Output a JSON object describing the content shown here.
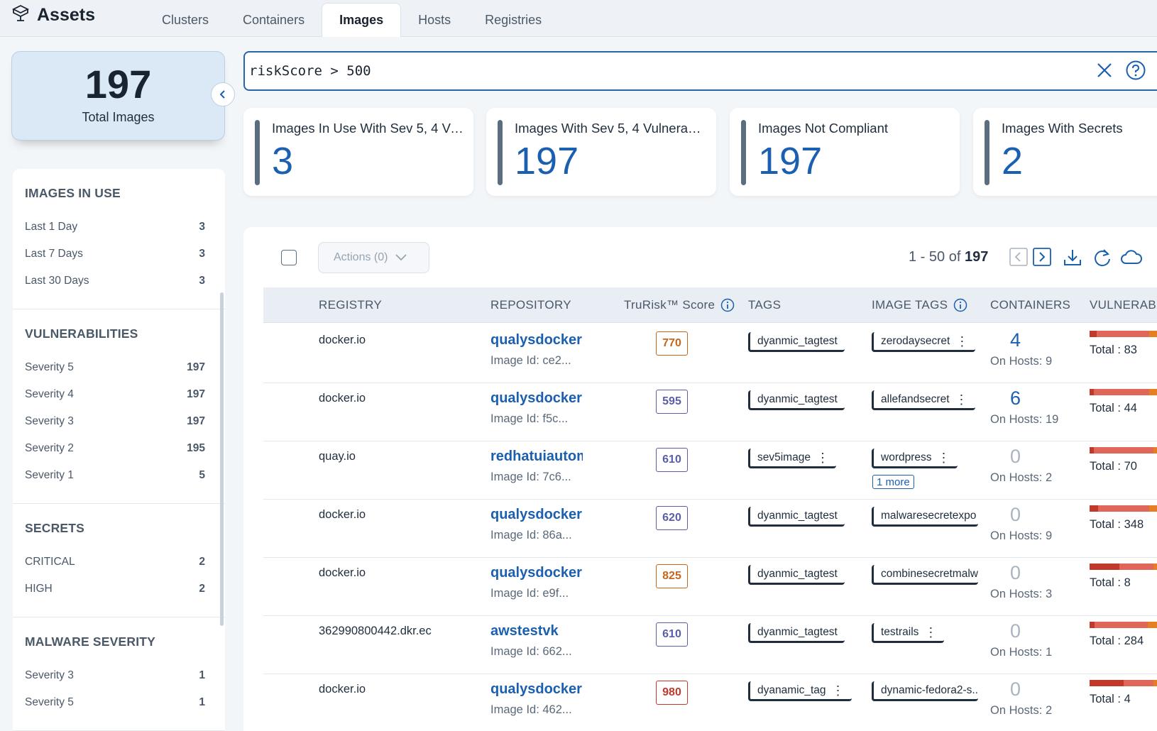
{
  "app": {
    "title": "Assets"
  },
  "tabs": [
    {
      "label": "Clusters",
      "active": false
    },
    {
      "label": "Containers",
      "active": false
    },
    {
      "label": "Images",
      "active": true
    },
    {
      "label": "Hosts",
      "active": false
    },
    {
      "label": "Registries",
      "active": false
    }
  ],
  "summary": {
    "total": "197",
    "label": "Total Images"
  },
  "filters": [
    {
      "title": "IMAGES IN USE",
      "items": [
        {
          "label": "Last 1 Day",
          "count": "3"
        },
        {
          "label": "Last 7 Days",
          "count": "3"
        },
        {
          "label": "Last 30 Days",
          "count": "3"
        }
      ]
    },
    {
      "title": "VULNERABILITIES",
      "items": [
        {
          "label": "Severity 5",
          "count": "197"
        },
        {
          "label": "Severity 4",
          "count": "197"
        },
        {
          "label": "Severity 3",
          "count": "197"
        },
        {
          "label": "Severity 2",
          "count": "195"
        },
        {
          "label": "Severity 1",
          "count": "5"
        }
      ]
    },
    {
      "title": "SECRETS",
      "items": [
        {
          "label": "CRITICAL",
          "count": "2"
        },
        {
          "label": "HIGH",
          "count": "2"
        }
      ]
    },
    {
      "title": "MALWARE SEVERITY",
      "items": [
        {
          "label": "Severity 3",
          "count": "1"
        },
        {
          "label": "Severity 5",
          "count": "1"
        }
      ]
    }
  ],
  "search": {
    "value": "riskScore > 500"
  },
  "kpis": [
    {
      "label": "Images In Use With Sev 5, 4 Vulnerabilities",
      "value": "3"
    },
    {
      "label": "Images With Sev 5, 4 Vulnerabilities",
      "value": "197"
    },
    {
      "label": "Images Not Compliant",
      "value": "197"
    },
    {
      "label": "Images With Secrets",
      "value": "2"
    }
  ],
  "toolbar": {
    "actions_label": "Actions (0)",
    "range": "1 - 50 of",
    "total": "197"
  },
  "columns": {
    "registry": "REGISTRY",
    "repository": "REPOSITORY",
    "trurisk": "TruRisk™ Score",
    "tags": "TAGS",
    "image_tags": "IMAGE TAGS",
    "containers": "CONTAINERS",
    "vulnerabilities": "VULNERABI"
  },
  "colors": {
    "accent": "#1b5fb0",
    "score_high": "#c0392b",
    "score_mid": "#c8651b",
    "score_low": "#5b5ea6"
  },
  "rows": [
    {
      "registry": "docker.io",
      "repository": "qualysdocker",
      "image_id": "Image Id: ce2...",
      "score": "770",
      "score_level": "mid",
      "tag": "dyanmic_tagtest",
      "image_tag": "zerodaysecret",
      "image_tag_menu": true,
      "more": "",
      "containers": "4",
      "hosts": "On Hosts: 9",
      "vuln_total": "Total : 83",
      "vuln_bar": [
        0.08,
        0.62,
        0.3
      ]
    },
    {
      "registry": "docker.io",
      "repository": "qualysdocker",
      "image_id": "Image Id: f5c...",
      "score": "595",
      "score_level": "low",
      "tag": "dyanmic_tagtest",
      "image_tag": "allefandsecret",
      "image_tag_menu": true,
      "more": "",
      "containers": "6",
      "hosts": "On Hosts: 19",
      "vuln_total": "Total : 44",
      "vuln_bar": [
        0.05,
        0.65,
        0.3
      ]
    },
    {
      "registry": "quay.io",
      "repository": "redhatuiautomation",
      "image_id": "Image Id: 7c6...",
      "score": "610",
      "score_level": "low",
      "tag": "sev5image",
      "tag_menu": true,
      "image_tag": "wordpress",
      "image_tag_menu": true,
      "more": "1 more",
      "containers": "0",
      "hosts": "On Hosts: 2",
      "vuln_total": "Total : 70",
      "vuln_bar": [
        0.05,
        0.7,
        0.25
      ]
    },
    {
      "registry": "docker.io",
      "repository": "qualysdocker",
      "image_id": "Image Id: 86a...",
      "score": "620",
      "score_level": "low",
      "tag": "dyanmic_tagtest",
      "image_tag": "malwaresecretexpo",
      "image_tag_menu": false,
      "more": "",
      "containers": "0",
      "hosts": "On Hosts: 9",
      "vuln_total": "Total : 348",
      "vuln_bar": [
        0.1,
        0.6,
        0.3
      ]
    },
    {
      "registry": "docker.io",
      "repository": "qualysdocker",
      "image_id": "Image Id: e9f...",
      "score": "825",
      "score_level": "mid",
      "tag": "dyanmic_tagtest",
      "image_tag": "combinesecretmalware",
      "image_tag_menu": false,
      "more": "",
      "containers": "0",
      "hosts": "On Hosts: 3",
      "vuln_total": "Total : 8",
      "vuln_bar": [
        0.35,
        0.4,
        0.25
      ]
    },
    {
      "registry": "362990800442.dkr.ec",
      "repository": "awstestvk",
      "image_id": "Image Id: 662...",
      "score": "610",
      "score_level": "low",
      "tag": "dyanmic_tagtest",
      "image_tag": "testrails",
      "image_tag_menu": true,
      "more": "",
      "containers": "0",
      "hosts": "On Hosts: 1",
      "vuln_total": "Total : 284",
      "vuln_bar": [
        0.06,
        0.62,
        0.32
      ]
    },
    {
      "registry": "docker.io",
      "repository": "qualysdocker",
      "image_id": "Image Id: 462...",
      "score": "980",
      "score_level": "high",
      "tag": "dyanamic_tag",
      "tag_menu": true,
      "image_tag": "dynamic-fedora2-s...",
      "image_tag_menu": false,
      "more": "",
      "containers": "0",
      "hosts": "On Hosts: 2",
      "vuln_total": "Total : 4",
      "vuln_bar": [
        0.4,
        0.35,
        0.25
      ]
    }
  ]
}
